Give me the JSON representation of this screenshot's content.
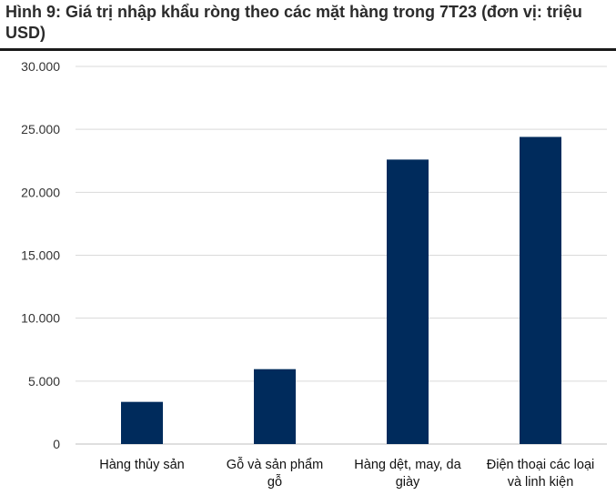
{
  "title": "Hình 9: Giá trị nhập khẩu ròng theo các mặt hàng trong 7T23 (đơn vị: triệu USD)",
  "colors": {
    "bar": "#002b5c",
    "grid": "#d9d9d9",
    "axis": "#bfbfbf"
  },
  "chart_data": {
    "type": "bar",
    "title": "Hình 9: Giá trị nhập khẩu ròng theo các mặt hàng trong 7T23 (đơn vị: triệu USD)",
    "categories": [
      "Hàng thủy sản",
      "Gỗ và sản phẩm gỗ",
      "Hàng dệt, may, da giày",
      "Điện thoại các loại và linh kiện"
    ],
    "category_lines": [
      [
        "Hàng thủy sản"
      ],
      [
        "Gỗ và sản phẩm",
        "gỗ"
      ],
      [
        "Hàng dệt, may, da",
        "giày"
      ],
      [
        "Điện thoại các loại",
        "và linh kiện"
      ]
    ],
    "values": [
      3350,
      5950,
      22600,
      24400
    ],
    "ylim": [
      0,
      30000
    ],
    "yticks": [
      0,
      5000,
      10000,
      15000,
      20000,
      25000,
      30000
    ],
    "ytick_labels": [
      "0",
      "5.000",
      "10.000",
      "15.000",
      "20.000",
      "25.000",
      "30.000"
    ],
    "grid": true,
    "legend": "none",
    "xlabel": "",
    "ylabel": ""
  }
}
